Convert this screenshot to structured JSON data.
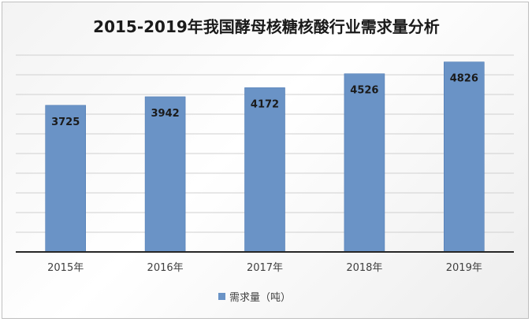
{
  "chart_data": {
    "type": "bar",
    "title": "2015-2019年我国酵母核糖核酸行业需求量分析",
    "categories": [
      "2015年",
      "2016年",
      "2017年",
      "2018年",
      "2019年"
    ],
    "series": [
      {
        "name": "需求量（吨）",
        "values": [
          3725,
          3942,
          4172,
          4526,
          4826
        ]
      }
    ],
    "ylim": [
      0,
      5000
    ],
    "grid": true,
    "legend": "bottom",
    "colors": {
      "bar": "#6a93c6",
      "bar_stroke": "#4f7bb3",
      "grid": "#d0d0d0",
      "axis": "#262626"
    }
  }
}
